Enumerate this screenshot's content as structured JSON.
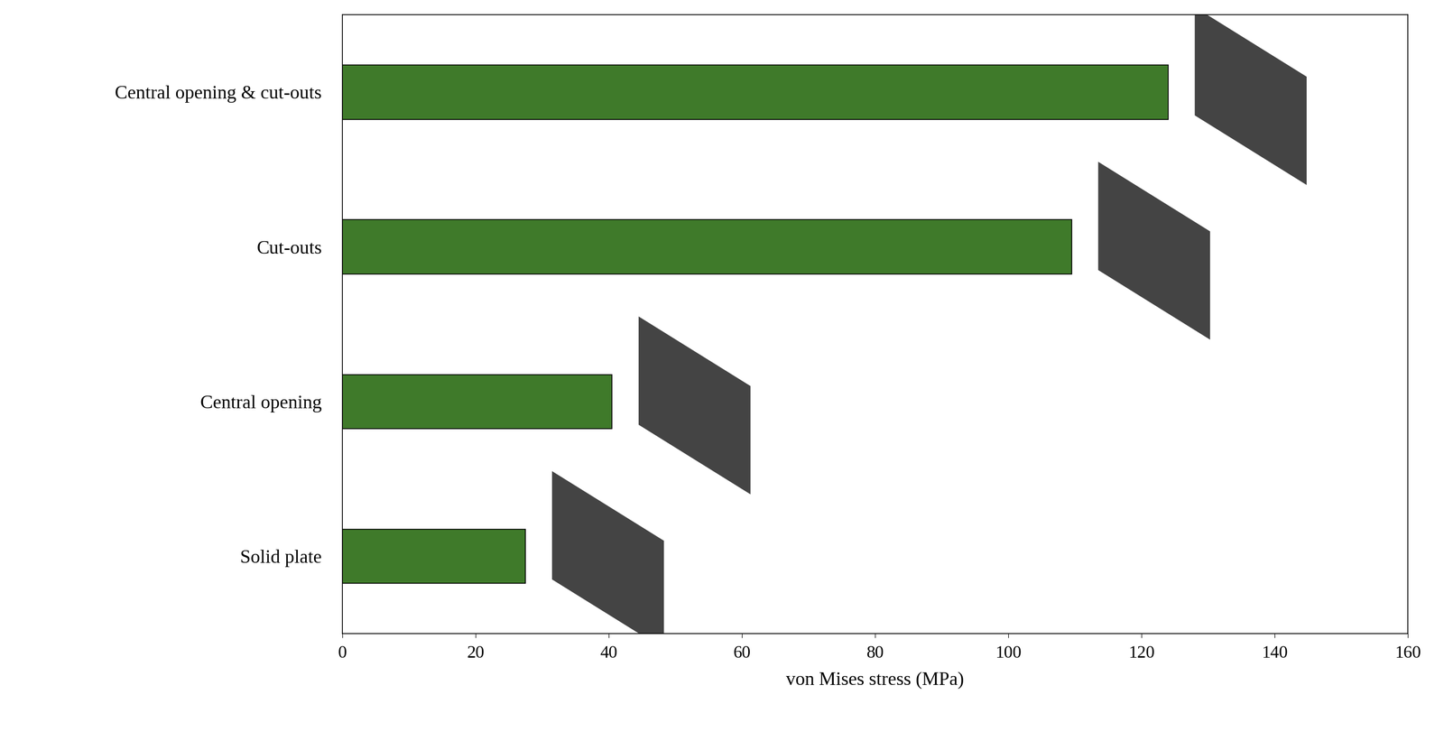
{
  "chart_data": {
    "type": "bar",
    "orientation": "horizontal",
    "categories": [
      "Central opening & cut-outs",
      "Cut-outs",
      "Central opening",
      "Solid plate"
    ],
    "values": [
      124,
      109.5,
      40.5,
      27.5
    ],
    "color": "#3f7a2a",
    "xlabel": "von Mises stress (MPa)",
    "xlim": [
      0,
      160
    ],
    "xticks": [
      0,
      20,
      40,
      60,
      80,
      100,
      120,
      140,
      160
    ],
    "grid": false
  }
}
